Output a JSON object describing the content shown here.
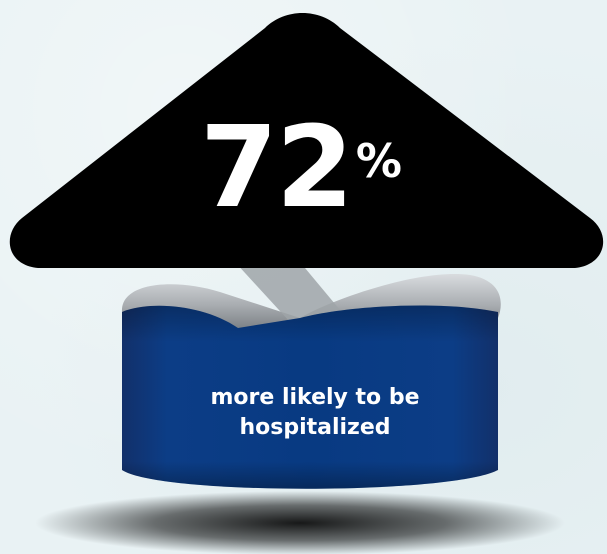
{
  "stat": {
    "value": "72",
    "unit": "%"
  },
  "caption": "more likely to be hospitalized",
  "colors": {
    "background": "#e9f2f4",
    "arrow_head": "#000000",
    "band_blue": "#0a3a7a",
    "band_gray": "#b0b4b8",
    "text": "#ffffff"
  }
}
